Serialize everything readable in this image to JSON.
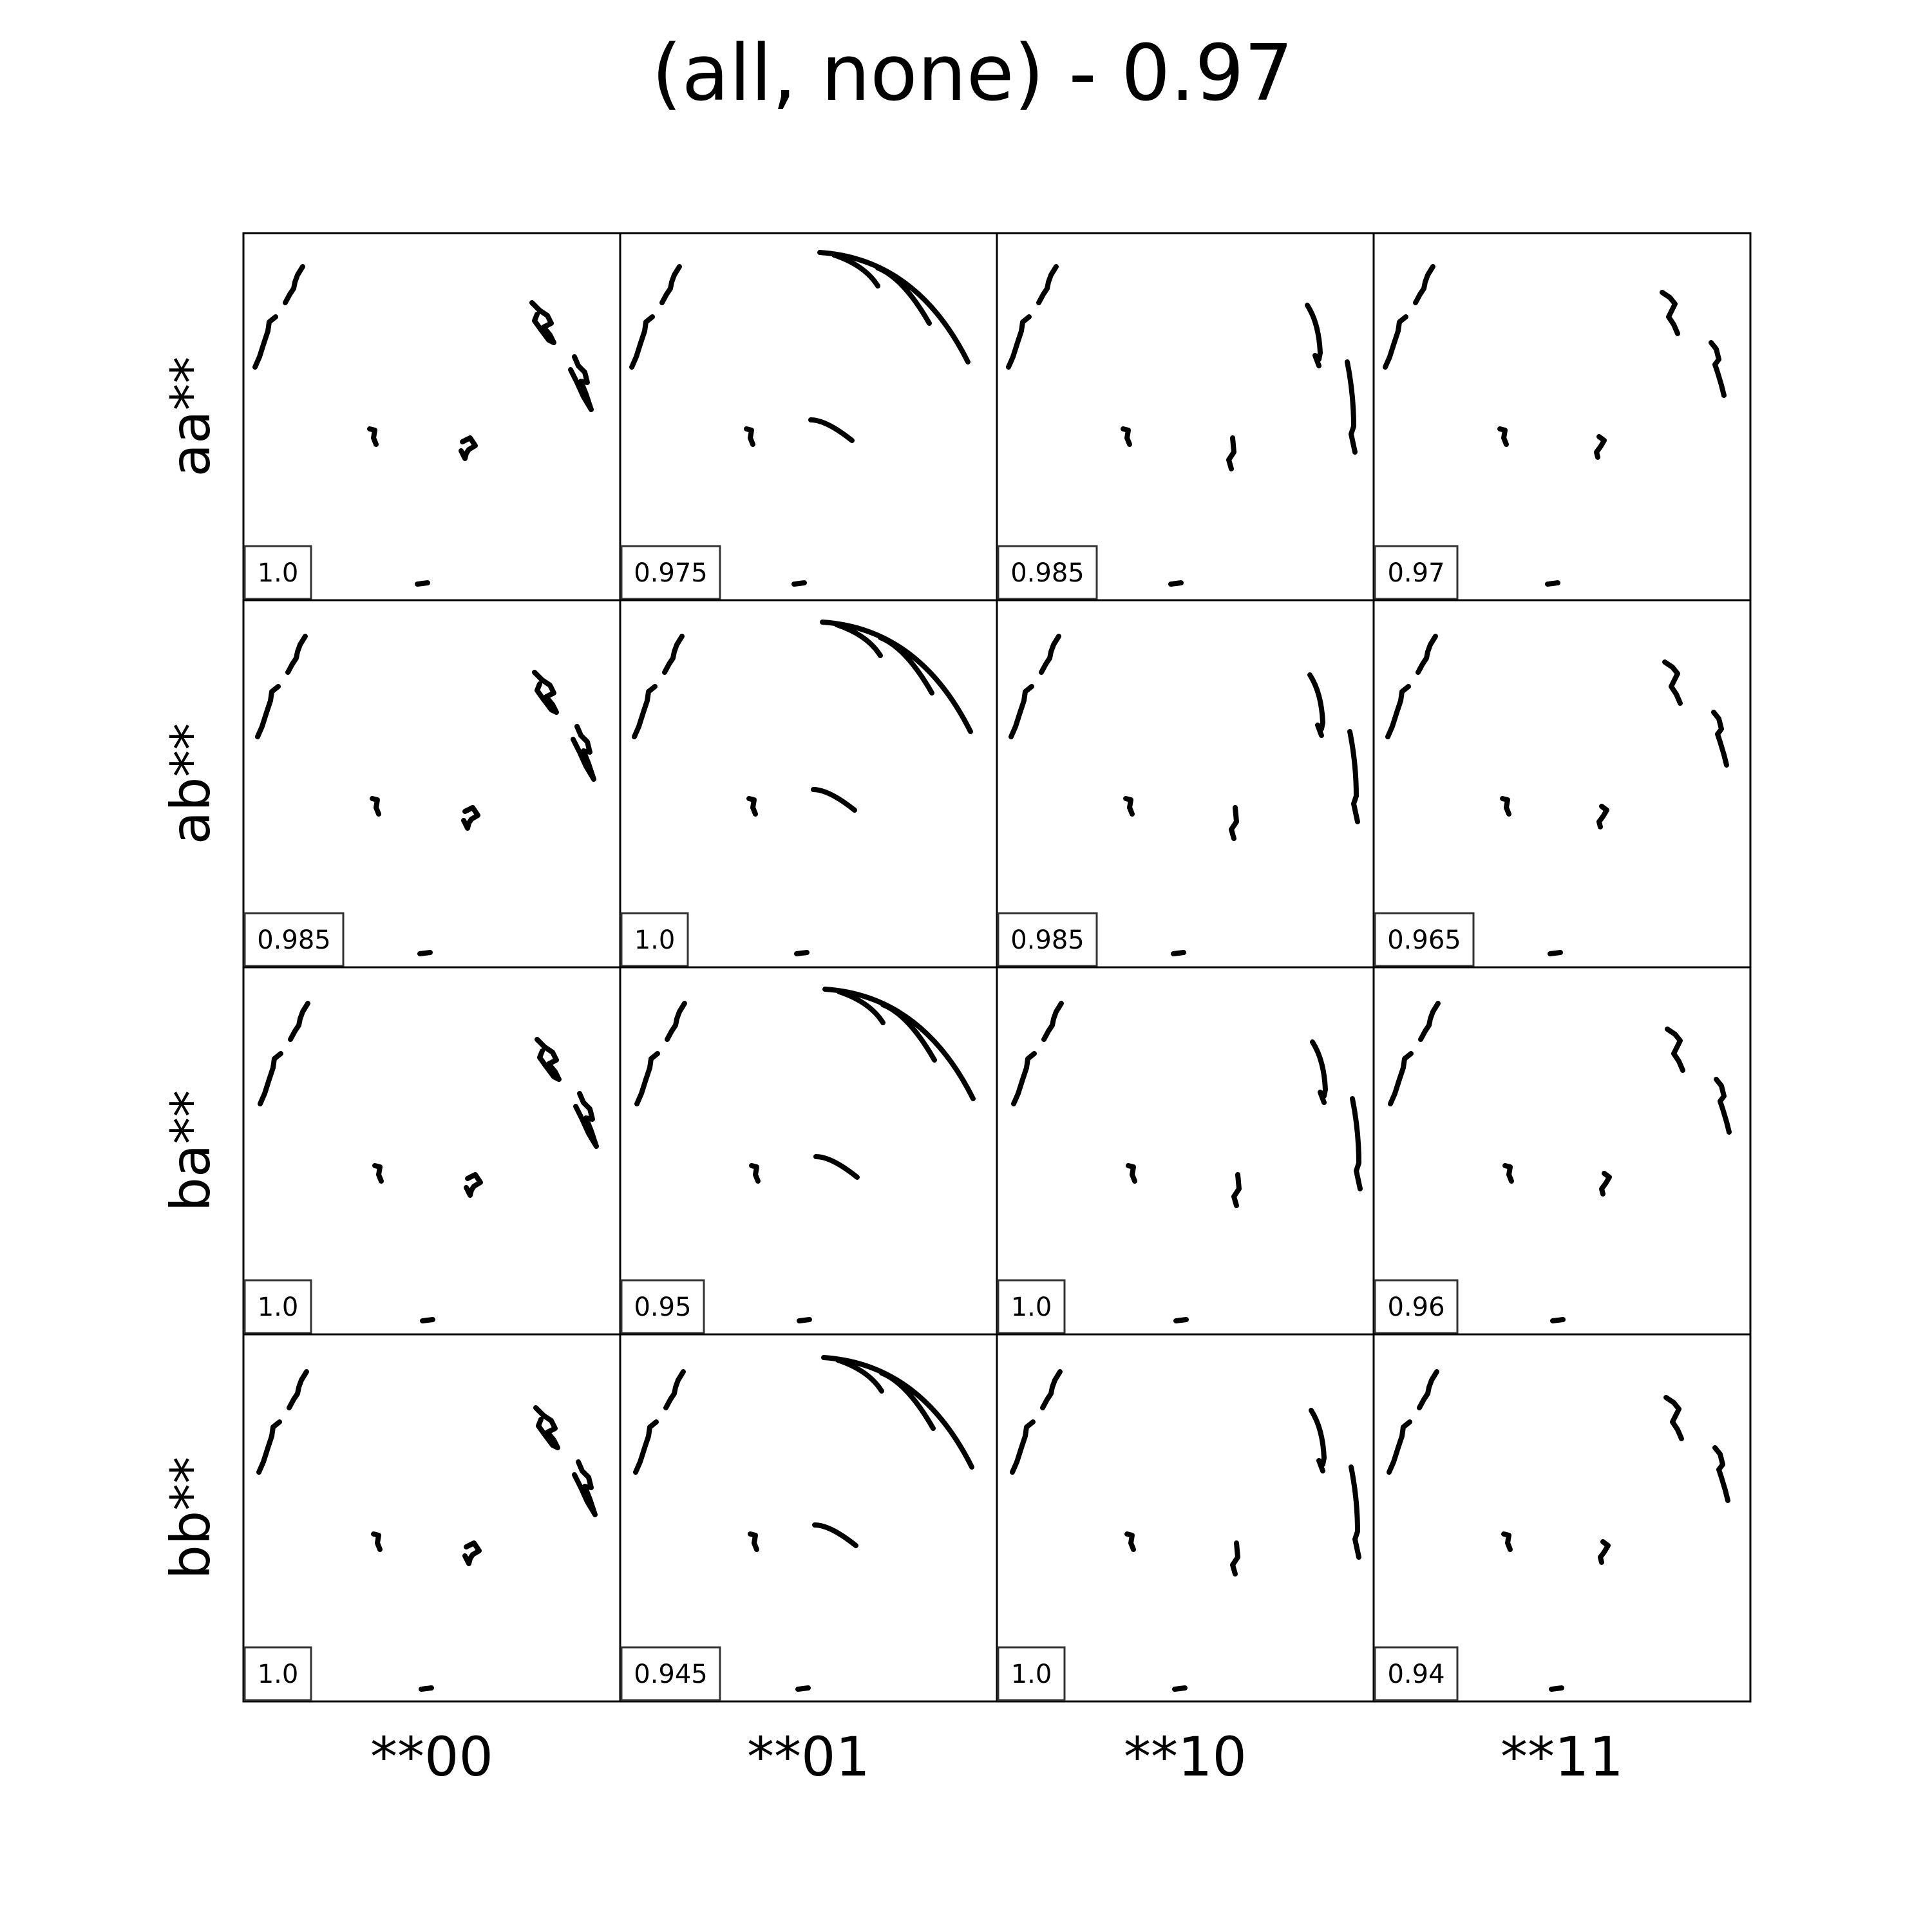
{
  "title": "(all, none) - 0.97",
  "chart_data": {
    "type": "grid",
    "rows": [
      "aa**",
      "ab**",
      "ba**",
      "bb**"
    ],
    "columns": [
      "**00",
      "**01",
      "**10",
      "**11"
    ],
    "scores": [
      [
        "1.0",
        "0.975",
        "0.985",
        "0.97"
      ],
      [
        "0.985",
        "1.0",
        "0.985",
        "0.965"
      ],
      [
        "1.0",
        "0.95",
        "1.0",
        "0.96"
      ],
      [
        "1.0",
        "0.945",
        "1.0",
        "0.94"
      ]
    ],
    "stroke_color": "#000000"
  }
}
